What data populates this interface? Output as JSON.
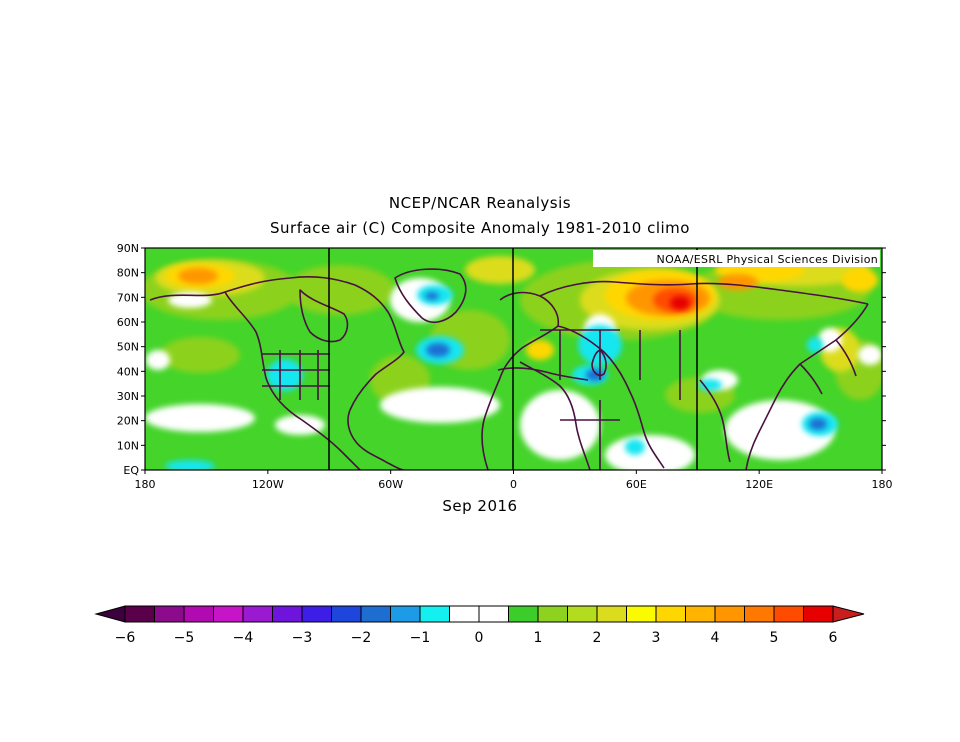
{
  "header": {
    "title": "NCEP/NCAR Reanalysis",
    "subtitle": "Surface air (C) Composite Anomaly 1981-2010 climo"
  },
  "credit": "NOAA/ESRL Physical Sciences Division",
  "period": "Sep 2016",
  "map": {
    "lat_labels": [
      "90N",
      "80N",
      "70N",
      "60N",
      "50N",
      "40N",
      "30N",
      "20N",
      "10N",
      "EQ"
    ],
    "lon_labels": [
      "180",
      "120W",
      "60W",
      "0",
      "60E",
      "120E",
      "180"
    ],
    "lat_range": [
      0,
      90
    ],
    "lon_range": [
      -180,
      180
    ],
    "colors": {
      "frame": "#000000",
      "coast": "#4a1040",
      "background_anomaly": "#44d42a"
    }
  },
  "colorbar": {
    "labels": [
      "-6",
      "-5",
      "-4",
      "-3",
      "-2",
      "-1",
      "0",
      "1",
      "2",
      "3",
      "4",
      "5",
      "6"
    ],
    "colors": [
      "#5a004a",
      "#8c0a8c",
      "#b00ab0",
      "#c814c8",
      "#9a1ad2",
      "#6e14dc",
      "#3c1ee6",
      "#1e46dc",
      "#1e6ed2",
      "#1e9be6",
      "#14f0f0",
      "#ffffff",
      "#ffffff",
      "#3ccd2a",
      "#8cd21e",
      "#b4dc1e",
      "#dcdc1e",
      "#fafa00",
      "#ffd700",
      "#ffb400",
      "#ff9600",
      "#ff7800",
      "#ff4b00",
      "#e60000"
    ],
    "low_color": "#3c003c",
    "high_color": "#c81e1e"
  }
}
